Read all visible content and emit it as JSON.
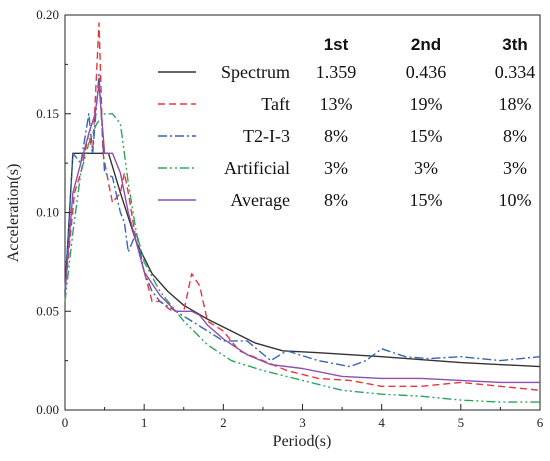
{
  "chart_data": {
    "type": "line",
    "xlabel": "Period(s)",
    "ylabel": "Acceleration(s)",
    "xlim": [
      0,
      6
    ],
    "ylim": [
      0,
      0.2
    ],
    "xticks": [
      "0",
      "1",
      "2",
      "3",
      "4",
      "5",
      "6"
    ],
    "yticks": [
      "0.00",
      "0.05",
      "0.10",
      "0.15",
      "0.20"
    ],
    "grid": false,
    "legend_position": "top-right",
    "table": {
      "columns": [
        "1st",
        "2nd",
        "3th"
      ],
      "rows": [
        {
          "name": "Spectrum",
          "values": [
            "1.359",
            "0.436",
            "0.334"
          ]
        },
        {
          "name": "Taft",
          "values": [
            "13%",
            "19%",
            "18%"
          ]
        },
        {
          "name": "T2-I-3",
          "values": [
            "8%",
            "15%",
            "8%"
          ]
        },
        {
          "name": "Artificial",
          "values": [
            "3%",
            "3%",
            "3%"
          ]
        },
        {
          "name": "Average",
          "values": [
            "8%",
            "15%",
            "10%"
          ]
        }
      ]
    },
    "series": [
      {
        "name": "Spectrum",
        "color": "#333333",
        "style": "solid",
        "points": [
          [
            0,
            0.06
          ],
          [
            0.1,
            0.13
          ],
          [
            0.55,
            0.13
          ],
          [
            0.7,
            0.11
          ],
          [
            0.9,
            0.085
          ],
          [
            1.1,
            0.069
          ],
          [
            1.3,
            0.06
          ],
          [
            1.5,
            0.053
          ],
          [
            1.8,
            0.046
          ],
          [
            2.1,
            0.04
          ],
          [
            2.4,
            0.034
          ],
          [
            2.75,
            0.03
          ],
          [
            3.2,
            0.029
          ],
          [
            4,
            0.027
          ],
          [
            5,
            0.024
          ],
          [
            6,
            0.022
          ]
        ]
      },
      {
        "name": "Taft",
        "color": "#e8363c",
        "style": "dashed",
        "points": [
          [
            0,
            0.06
          ],
          [
            0.12,
            0.11
          ],
          [
            0.2,
            0.12
          ],
          [
            0.3,
            0.14
          ],
          [
            0.35,
            0.13
          ],
          [
            0.43,
            0.196
          ],
          [
            0.48,
            0.13
          ],
          [
            0.55,
            0.115
          ],
          [
            0.6,
            0.105
          ],
          [
            0.7,
            0.11
          ],
          [
            0.75,
            0.12
          ],
          [
            0.8,
            0.11
          ],
          [
            0.9,
            0.085
          ],
          [
            1.0,
            0.07
          ],
          [
            1.1,
            0.055
          ],
          [
            1.2,
            0.055
          ],
          [
            1.35,
            0.05
          ],
          [
            1.5,
            0.05
          ],
          [
            1.6,
            0.069
          ],
          [
            1.7,
            0.063
          ],
          [
            1.8,
            0.045
          ],
          [
            2.0,
            0.04
          ],
          [
            2.2,
            0.03
          ],
          [
            2.5,
            0.025
          ],
          [
            2.8,
            0.02
          ],
          [
            3.2,
            0.016
          ],
          [
            3.6,
            0.015
          ],
          [
            4.0,
            0.012
          ],
          [
            4.5,
            0.012
          ],
          [
            5.0,
            0.014
          ],
          [
            5.5,
            0.012
          ],
          [
            6.0,
            0.01
          ]
        ]
      },
      {
        "name": "T2-I-3",
        "color": "#3566b0",
        "style": "dashdot",
        "points": [
          [
            0,
            0.06
          ],
          [
            0.1,
            0.13
          ],
          [
            0.2,
            0.125
          ],
          [
            0.3,
            0.15
          ],
          [
            0.35,
            0.13
          ],
          [
            0.43,
            0.17
          ],
          [
            0.5,
            0.12
          ],
          [
            0.6,
            0.118
          ],
          [
            0.7,
            0.1
          ],
          [
            0.75,
            0.095
          ],
          [
            0.8,
            0.08
          ],
          [
            0.9,
            0.09
          ],
          [
            1.0,
            0.07
          ],
          [
            1.1,
            0.06
          ],
          [
            1.2,
            0.055
          ],
          [
            1.4,
            0.05
          ],
          [
            1.6,
            0.045
          ],
          [
            1.8,
            0.04
          ],
          [
            2.0,
            0.035
          ],
          [
            2.3,
            0.035
          ],
          [
            2.6,
            0.025
          ],
          [
            2.8,
            0.03
          ],
          [
            3.2,
            0.025
          ],
          [
            3.6,
            0.022
          ],
          [
            3.8,
            0.025
          ],
          [
            4.0,
            0.031
          ],
          [
            4.3,
            0.027
          ],
          [
            4.6,
            0.026
          ],
          [
            5.0,
            0.027
          ],
          [
            5.5,
            0.025
          ],
          [
            6.0,
            0.027
          ]
        ]
      },
      {
        "name": "Artificial",
        "color": "#2ea55e",
        "style": "dashdotdot",
        "points": [
          [
            0,
            0.055
          ],
          [
            0.1,
            0.09
          ],
          [
            0.2,
            0.12
          ],
          [
            0.3,
            0.135
          ],
          [
            0.4,
            0.145
          ],
          [
            0.5,
            0.15
          ],
          [
            0.6,
            0.15
          ],
          [
            0.7,
            0.145
          ],
          [
            0.8,
            0.115
          ],
          [
            0.9,
            0.09
          ],
          [
            1.0,
            0.075
          ],
          [
            1.2,
            0.06
          ],
          [
            1.5,
            0.045
          ],
          [
            1.8,
            0.033
          ],
          [
            2.1,
            0.025
          ],
          [
            2.5,
            0.02
          ],
          [
            3.0,
            0.015
          ],
          [
            3.5,
            0.01
          ],
          [
            4.0,
            0.008
          ],
          [
            4.5,
            0.007
          ],
          [
            5.0,
            0.005
          ],
          [
            5.5,
            0.004
          ],
          [
            6.0,
            0.004
          ]
        ]
      },
      {
        "name": "Average",
        "color": "#8e4ead",
        "style": "solid",
        "points": [
          [
            0,
            0.06
          ],
          [
            0.1,
            0.11
          ],
          [
            0.2,
            0.125
          ],
          [
            0.3,
            0.14
          ],
          [
            0.38,
            0.15
          ],
          [
            0.43,
            0.165
          ],
          [
            0.5,
            0.13
          ],
          [
            0.6,
            0.13
          ],
          [
            0.7,
            0.12
          ],
          [
            0.8,
            0.1
          ],
          [
            0.9,
            0.085
          ],
          [
            1.0,
            0.07
          ],
          [
            1.2,
            0.058
          ],
          [
            1.4,
            0.05
          ],
          [
            1.6,
            0.05
          ],
          [
            1.7,
            0.048
          ],
          [
            1.8,
            0.043
          ],
          [
            2.0,
            0.036
          ],
          [
            2.3,
            0.028
          ],
          [
            2.6,
            0.023
          ],
          [
            3.0,
            0.021
          ],
          [
            3.5,
            0.017
          ],
          [
            4.0,
            0.016
          ],
          [
            4.5,
            0.016
          ],
          [
            5.0,
            0.015
          ],
          [
            5.5,
            0.014
          ],
          [
            6.0,
            0.014
          ]
        ]
      }
    ]
  }
}
